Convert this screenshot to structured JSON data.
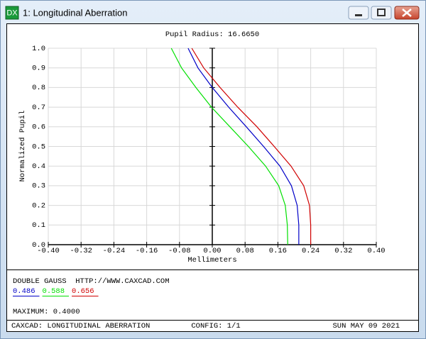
{
  "window": {
    "title": "1: Longitudinal Aberration",
    "icon": "DX"
  },
  "chart_data": {
    "type": "line",
    "title": "Pupil Radius: 16.6650",
    "x_label": "Mellimeters",
    "y_label": "Normalized Pupil",
    "y": [
      0,
      0.1,
      0.2,
      0.3,
      0.4,
      0.5,
      0.6,
      0.7,
      0.8,
      0.9,
      1.0
    ],
    "series": [
      {
        "name": "0.486",
        "color": "#0000c8",
        "x": [
          0.211,
          0.211,
          0.207,
          0.193,
          0.165,
          0.125,
          0.083,
          0.04,
          0.0,
          -0.035,
          -0.059
        ]
      },
      {
        "name": "0.588",
        "color": "#00e000",
        "x": [
          0.184,
          0.183,
          0.178,
          0.162,
          0.13,
          0.088,
          0.043,
          -0.002,
          -0.04,
          -0.075,
          -0.1
        ]
      },
      {
        "name": "0.656",
        "color": "#d00000",
        "x": [
          0.24,
          0.24,
          0.237,
          0.223,
          0.192,
          0.151,
          0.109,
          0.062,
          0.019,
          -0.021,
          -0.05
        ]
      }
    ],
    "xlim": [
      -0.4,
      0.4
    ],
    "ylim": [
      0,
      1.0
    ],
    "xticks": [
      {
        "value": -0.4,
        "label": "-0.40"
      },
      {
        "value": -0.32,
        "label": "-0.32"
      },
      {
        "value": -0.24,
        "label": "-0.24"
      },
      {
        "value": -0.16,
        "label": "-0.16"
      },
      {
        "value": -0.08,
        "label": "-0.08"
      },
      {
        "value": 0,
        "label": "0.00"
      },
      {
        "value": 0.08,
        "label": "0.08"
      },
      {
        "value": 0.16,
        "label": "0.16"
      },
      {
        "value": 0.24,
        "label": "0.24"
      },
      {
        "value": 0.32,
        "label": "0.32"
      },
      {
        "value": 0.4,
        "label": "0.40"
      }
    ],
    "yticks": [
      {
        "value": 0,
        "label": "0.0"
      },
      {
        "value": 0.1,
        "label": "0.1"
      },
      {
        "value": 0.2,
        "label": "0.2"
      },
      {
        "value": 0.3,
        "label": "0.3"
      },
      {
        "value": 0.4,
        "label": "0.4"
      },
      {
        "value": 0.5,
        "label": "0.5"
      },
      {
        "value": 0.6,
        "label": "0.6"
      },
      {
        "value": 0.7,
        "label": "0.7"
      },
      {
        "value": 0.8,
        "label": "0.8"
      },
      {
        "value": 0.9,
        "label": "0.9"
      },
      {
        "value": 1.0,
        "label": "1.0"
      }
    ],
    "grid": true
  },
  "info": {
    "description": "DOUBLE GAUSS  HTTP://WWW.CAXCAD.COM",
    "maximum": "MAXIMUM: 0.4000"
  },
  "footer": {
    "left": "CAXCAD: LONGITUDINAL ABERRATION",
    "center": "CONFIG: 1/1",
    "right": "SUN MAY 09 2021"
  }
}
